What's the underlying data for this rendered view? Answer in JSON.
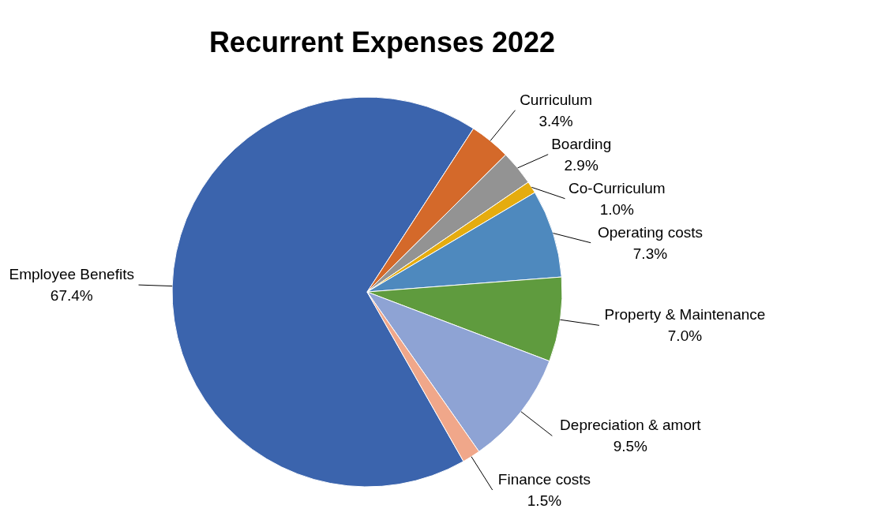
{
  "chart_data": {
    "type": "pie",
    "title": "Recurrent Expenses 2022",
    "categories": [
      "Employee Benefits",
      "Curriculum",
      "Boarding",
      "Co-Curriculum",
      "Operating costs",
      "Property & Maintenance",
      "Depreciation & amort",
      "Finance costs"
    ],
    "values": [
      67.4,
      3.4,
      2.9,
      1.0,
      7.3,
      7.0,
      9.5,
      1.5
    ],
    "value_labels": [
      "67.4%",
      "3.4%",
      "2.9%",
      "1.0%",
      "7.3%",
      "7.0%",
      "9.5%",
      "1.5%"
    ],
    "colors": [
      "#3b64ad",
      "#d4692a",
      "#939393",
      "#e5ac0f",
      "#4e89be",
      "#5f9b3e",
      "#8ea3d4",
      "#f0a78a"
    ]
  }
}
